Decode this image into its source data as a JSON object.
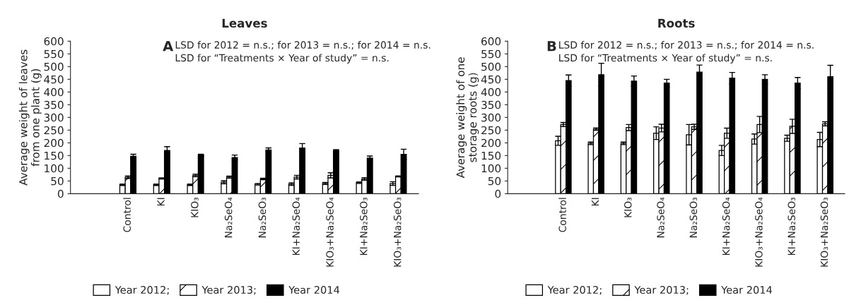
{
  "chart_data": [
    {
      "type": "bar",
      "title": "Leaves",
      "ylabel": "Average weight of leaves\nfrom one plant (g)",
      "categories": [
        "Control",
        "KI",
        "KIO₃",
        "Na₂SeO₄",
        "Na₂SeO₃",
        "KI+Na₂SeO₄",
        "KIO₃+Na₂SeO₄",
        "KI+Na₂SeO₃",
        "KIO₃+Na₂SeO₃"
      ],
      "series": [
        {
          "name": "Year 2012;",
          "color": "#ffffff",
          "values": [
            35,
            35,
            35,
            45,
            37,
            38,
            40,
            43,
            40
          ],
          "errors": [
            3,
            3,
            3,
            6,
            3,
            5,
            4,
            3,
            7
          ]
        },
        {
          "name": "Year 2013;",
          "color": "#ffffff",
          "values": [
            65,
            60,
            72,
            65,
            58,
            65,
            72,
            58,
            68
          ],
          "errors": [
            5,
            2,
            5,
            4,
            3,
            7,
            10,
            5,
            2
          ]
        },
        {
          "name": "Year 2014",
          "color": "#000000",
          "values": [
            147,
            170,
            152,
            142,
            172,
            180,
            170,
            140,
            155
          ],
          "errors": [
            8,
            15,
            3,
            10,
            8,
            17,
            3,
            8,
            20
          ]
        }
      ],
      "ylim": [
        0,
        600
      ],
      "yticks": [
        0,
        50,
        100,
        150,
        200,
        250,
        300,
        350,
        400,
        450,
        500,
        550,
        600
      ],
      "grid": false,
      "legend": "bottom",
      "annotations": [
        "A",
        "LSD for 2012 = n.s.; for 2013 = n.s.; for 2014 = n.s.",
        "LSD for “Treatments × Year of study” = n.s."
      ]
    },
    {
      "type": "bar",
      "title": "Roots",
      "ylabel": "Average weight of one\nstorage roots (g)",
      "categories": [
        "Control",
        "KI",
        "KIO₃",
        "Na₂SeO₄",
        "Na₂SeO₃",
        "KI+Na₂SeO₄",
        "KIO₃+Na₂SeO₄",
        "KI+Na₂SeO₃",
        "KIO₃+Na₂SeO₃"
      ],
      "series": [
        {
          "name": "Year 2012;",
          "color": "#ffffff",
          "values": [
            208,
            198,
            198,
            238,
            232,
            170,
            215,
            218,
            213
          ],
          "errors": [
            18,
            5,
            5,
            25,
            40,
            20,
            20,
            12,
            28
          ]
        },
        {
          "name": "Year 2013;",
          "color": "#ffffff",
          "values": [
            272,
            254,
            260,
            258,
            263,
            238,
            272,
            265,
            275
          ],
          "errors": [
            8,
            5,
            12,
            15,
            10,
            20,
            32,
            28,
            8
          ]
        },
        {
          "name": "Year 2014",
          "color": "#000000",
          "values": [
            445,
            468,
            443,
            435,
            478,
            455,
            450,
            435,
            460
          ],
          "errors": [
            22,
            45,
            20,
            15,
            28,
            22,
            18,
            22,
            45
          ]
        }
      ],
      "ylim": [
        0,
        600
      ],
      "yticks": [
        0,
        50,
        100,
        150,
        200,
        250,
        300,
        350,
        400,
        450,
        500,
        550,
        600
      ],
      "grid": false,
      "legend": "bottom",
      "annotations": [
        "B",
        "LSD for 2012 = n.s.; for 2013 = n.s.; for 2014 = n.s.",
        "LSD for “Treatments × Year of study” = n.s."
      ]
    }
  ]
}
